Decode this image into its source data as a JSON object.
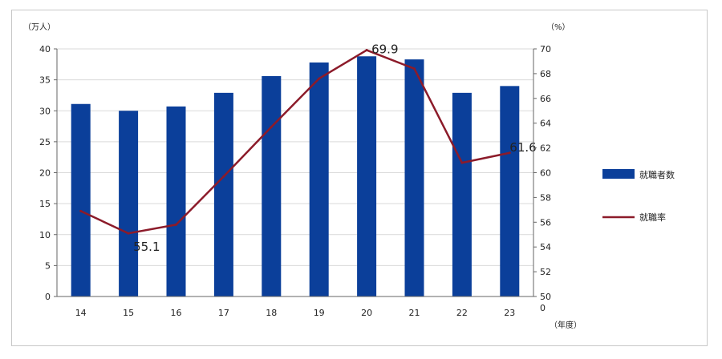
{
  "chart_data": {
    "type": "bar",
    "categories": [
      "14",
      "15",
      "16",
      "17",
      "18",
      "19",
      "20",
      "21",
      "22",
      "23"
    ],
    "series": [
      {
        "name": "就職者数",
        "kind": "bar",
        "axis": "left",
        "color": "#0b3f9a",
        "values": [
          31.1,
          30.0,
          30.7,
          32.9,
          35.6,
          37.8,
          38.8,
          38.3,
          32.9,
          34.0
        ]
      },
      {
        "name": "就職率",
        "kind": "line",
        "axis": "right",
        "color": "#8c1b2a",
        "values": [
          56.9,
          55.1,
          55.8,
          59.7,
          63.7,
          67.6,
          69.9,
          68.4,
          60.8,
          61.6
        ]
      }
    ],
    "data_labels": [
      {
        "series": 1,
        "index": 1,
        "text": "55.1"
      },
      {
        "series": 1,
        "index": 6,
        "text": "69.9"
      },
      {
        "series": 1,
        "index": 9,
        "text": "61.6"
      }
    ],
    "left_axis": {
      "unit": "（万人）",
      "ylim": [
        0,
        40
      ],
      "ticks": [
        "0",
        "5",
        "10",
        "15",
        "20",
        "25",
        "30",
        "35",
        "40"
      ]
    },
    "right_axis": {
      "unit": "（%）",
      "ylim": [
        50,
        70
      ],
      "ticks": [
        "50",
        "52",
        "54",
        "56",
        "58",
        "60",
        "62",
        "64",
        "66",
        "68",
        "70"
      ],
      "bottom_label": "0"
    },
    "x_unit": "（年度）",
    "legend": [
      "就職者数",
      "就職率"
    ],
    "legend_position": "right",
    "grid": "horizontal"
  }
}
